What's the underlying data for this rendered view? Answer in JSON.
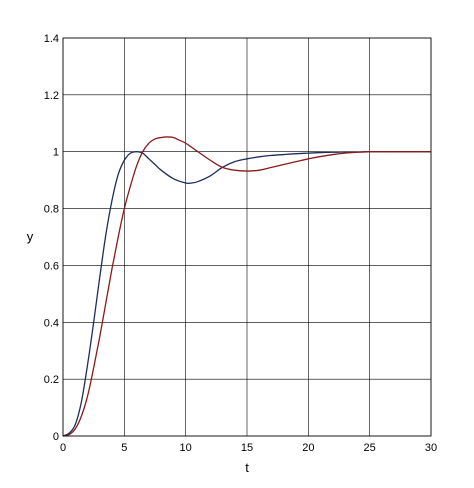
{
  "chart_data": {
    "type": "line",
    "title": "",
    "xlabel": "t",
    "ylabel": "y",
    "xlim": [
      0,
      30
    ],
    "ylim": [
      0,
      1.4
    ],
    "xticks": [
      0,
      5,
      10,
      15,
      20,
      25,
      30
    ],
    "yticks": [
      0,
      0.2,
      0.4,
      0.6,
      0.8,
      1,
      1.2,
      1.4
    ],
    "xtick_labels": [
      "0",
      "5",
      "10",
      "15",
      "20",
      "25",
      "30"
    ],
    "ytick_labels": [
      "0",
      "0.2",
      "0.4",
      "0.6",
      "0.8",
      "1",
      "1.2",
      "1.4"
    ],
    "grid": true,
    "legend": false,
    "series": [
      {
        "color": "#1c2e5c",
        "x": [
          0,
          0.5,
          1,
          1.5,
          2,
          2.5,
          3,
          3.5,
          4,
          4.5,
          5,
          5.5,
          6,
          6.5,
          7,
          7.5,
          8,
          9,
          10,
          10.5,
          11,
          12,
          13,
          14,
          15,
          16,
          17,
          18,
          19,
          20,
          21,
          22,
          23,
          24,
          25,
          26,
          27,
          28,
          29,
          30
        ],
        "y": [
          0,
          0.01,
          0.04,
          0.12,
          0.25,
          0.4,
          0.56,
          0.71,
          0.83,
          0.92,
          0.97,
          0.995,
          1.0,
          0.995,
          0.975,
          0.955,
          0.935,
          0.905,
          0.89,
          0.89,
          0.895,
          0.915,
          0.945,
          0.965,
          0.975,
          0.982,
          0.987,
          0.99,
          0.993,
          0.995,
          0.997,
          0.998,
          0.999,
          0.999,
          1.0,
          1.0,
          1.0,
          1.0,
          1.0,
          1.0
        ]
      },
      {
        "color": "#8b1a1a",
        "x": [
          0,
          0.5,
          1,
          1.5,
          2,
          2.5,
          3,
          3.5,
          4,
          4.5,
          5,
          5.5,
          6,
          6.5,
          7,
          7.5,
          8,
          8.5,
          9,
          9.5,
          10,
          11,
          12,
          13,
          14,
          15,
          16,
          17,
          18,
          19,
          20,
          21,
          22,
          23,
          24,
          25,
          26,
          27,
          28,
          29,
          30
        ],
        "y": [
          0,
          0.005,
          0.025,
          0.07,
          0.14,
          0.24,
          0.35,
          0.47,
          0.59,
          0.7,
          0.8,
          0.88,
          0.95,
          1.0,
          1.03,
          1.045,
          1.05,
          1.052,
          1.05,
          1.04,
          1.03,
          1.0,
          0.97,
          0.945,
          0.935,
          0.932,
          0.935,
          0.945,
          0.955,
          0.965,
          0.975,
          0.983,
          0.99,
          0.995,
          0.998,
          1.0,
          1.0,
          1.0,
          1.0,
          1.0,
          1.0
        ]
      }
    ]
  }
}
